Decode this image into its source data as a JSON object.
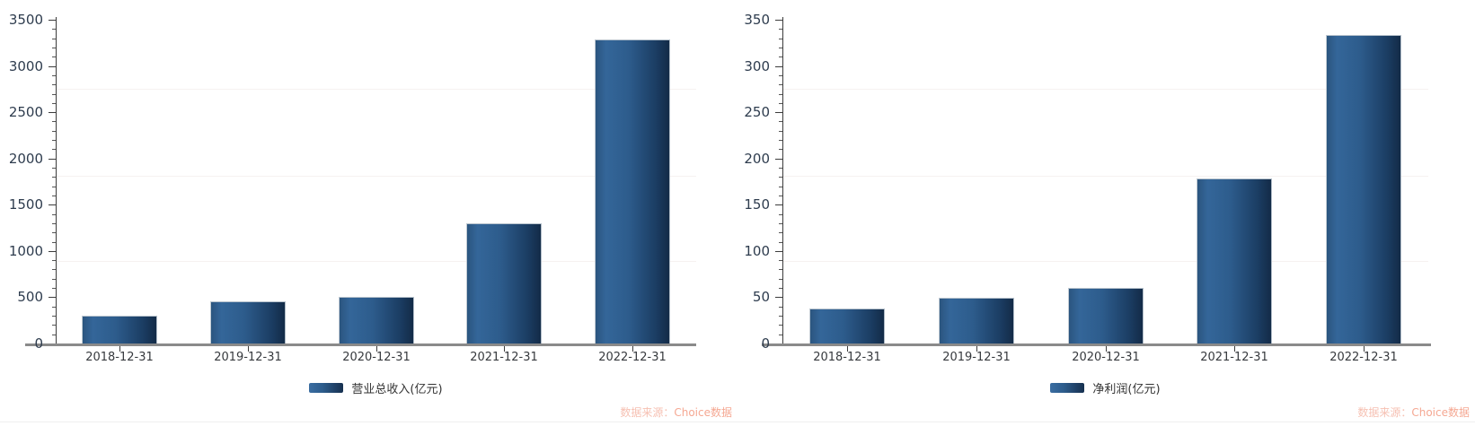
{
  "watermark": {
    "prefix": "数据来源：",
    "brand": "Choice数据"
  },
  "colors": {
    "bar_gradient": [
      "#346699",
      "#2d5c8c",
      "#132b47"
    ],
    "axis_line": "#3c3c3c",
    "baseline": "#8a8a8a",
    "y_tick_label": "#2e3c4e",
    "x_tick_label": "#36393d",
    "legend_text": "#333333",
    "watermark_text": "#f5ab97"
  },
  "chart_data": [
    {
      "type": "bar",
      "title": "",
      "legend": "营业总收入(亿元)",
      "categories": [
        "2018-12-31",
        "2019-12-31",
        "2020-12-31",
        "2021-12-31",
        "2022-12-31"
      ],
      "values": [
        296,
        458,
        503,
        1304,
        3286
      ],
      "xlabel": "",
      "ylabel": "",
      "ylim": [
        0,
        3500
      ],
      "y_step": 500,
      "y_minor_step": 100,
      "y_ticks": [
        "0",
        "500",
        "1000",
        "1500",
        "2000",
        "2500",
        "3000",
        "3500"
      ],
      "grid": "faint",
      "legend_position": "bottom"
    },
    {
      "type": "bar",
      "title": "",
      "legend": "净利润(亿元)",
      "categories": [
        "2018-12-31",
        "2019-12-31",
        "2020-12-31",
        "2021-12-31",
        "2022-12-31"
      ],
      "values": [
        38,
        49,
        60,
        178,
        334
      ],
      "xlabel": "",
      "ylabel": "",
      "ylim": [
        0,
        350
      ],
      "y_step": 50,
      "y_minor_step": 10,
      "y_ticks": [
        "0",
        "50",
        "100",
        "150",
        "200",
        "250",
        "300",
        "350"
      ],
      "grid": "faint",
      "legend_position": "bottom"
    }
  ]
}
